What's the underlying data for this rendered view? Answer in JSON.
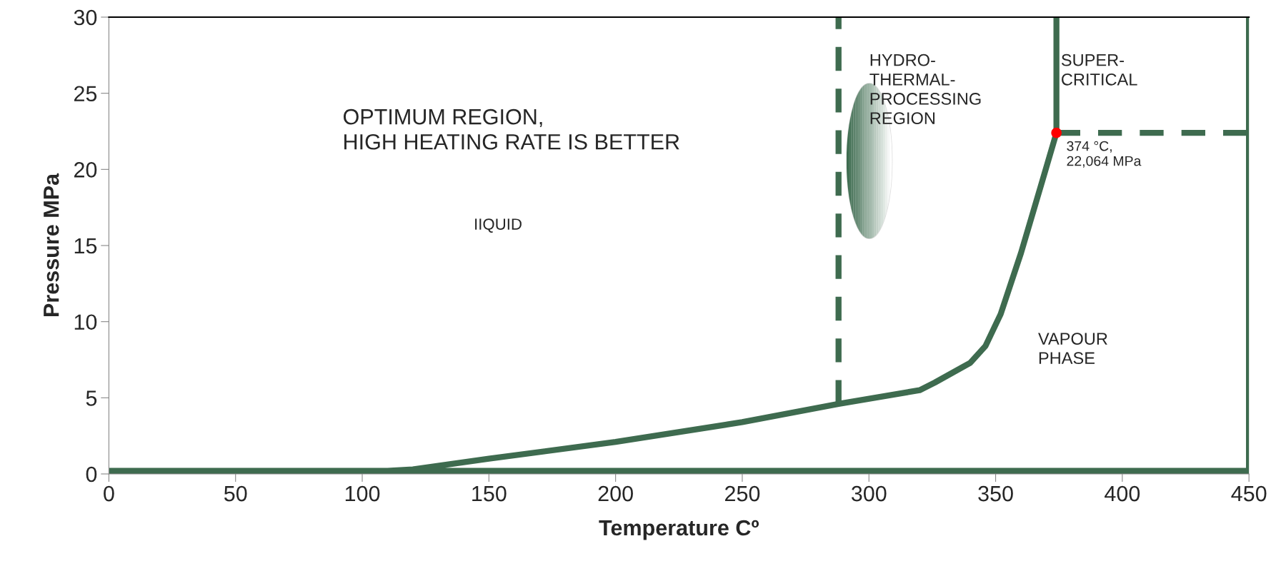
{
  "chart_data": {
    "type": "line",
    "xlabel": "Temperature Cº",
    "ylabel": "Pressure MPa",
    "xlim": [
      0,
      450
    ],
    "ylim": [
      0,
      30
    ],
    "xticks": [
      0,
      50,
      100,
      150,
      200,
      250,
      300,
      350,
      400,
      450
    ],
    "yticks": [
      0,
      5,
      10,
      15,
      20,
      25,
      30
    ],
    "grid": false,
    "legend": false,
    "marker": "none",
    "series": [
      {
        "color": "#3e6b4f",
        "line_style": "solid",
        "x": [
          374,
          374,
          368,
          360,
          352,
          346,
          340,
          326,
          320,
          288,
          250,
          200,
          150,
          120,
          110,
          0,
          450,
          450
        ],
        "values": [
          30,
          22.4,
          19,
          14.5,
          10.5,
          8.4,
          7.3,
          6.0,
          5.5,
          4.6,
          3.4,
          2.1,
          1.0,
          0.3,
          0.2,
          0.2,
          0.2,
          30
        ]
      },
      {
        "color": "#3e6b4f",
        "line_style": "dashed",
        "x": [
          288,
          288
        ],
        "values": [
          4.6,
          30
        ]
      },
      {
        "color": "#3e6b4f",
        "line_style": "dashed",
        "x": [
          374,
          450
        ],
        "values": [
          22.4,
          22.4
        ]
      },
      {
        "type": "scatter",
        "color": "#ff0000",
        "marker": "circle",
        "x": [
          374
        ],
        "values": [
          22.4
        ]
      }
    ],
    "annotations": [
      "OPTIMUM REGION,\nHIGH HEATING RATE IS BETTER",
      "IIQUID",
      "HYDRO-\nTHERMAL-\nPROCESSING\nREGION",
      "SUPER-\nCRITICAL",
      "VAPOUR\nPHASE",
      {
        "text": "374 °C,\n22,064 MPa",
        "x": 374,
        "y": 22.4
      }
    ]
  }
}
